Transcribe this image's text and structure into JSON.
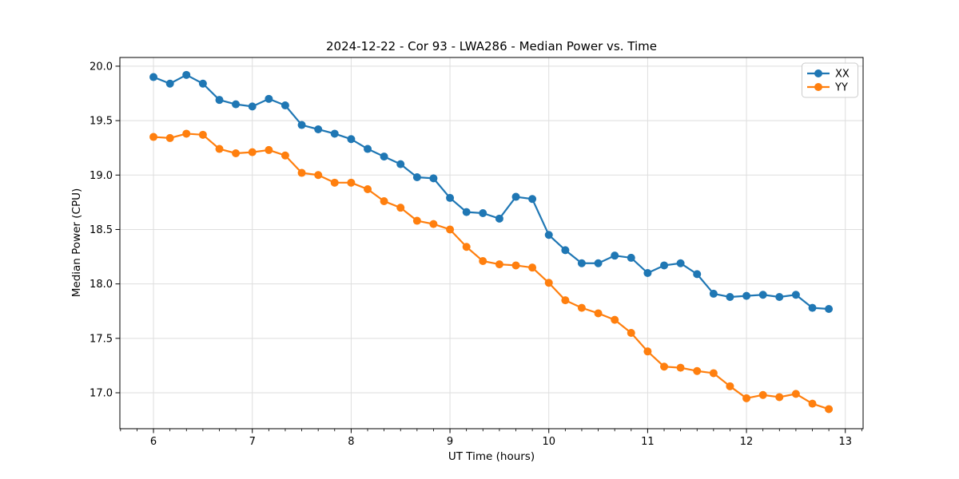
{
  "window": {
    "background_color": "#ffffff"
  },
  "chart_data": {
    "type": "line",
    "title": "2024-12-22 - Cor 93 - LWA286 - Median Power vs. Time",
    "xlabel": "UT Time (hours)",
    "ylabel": "Median Power (CPU)",
    "xlim": [
      5.66,
      13.18
    ],
    "ylim": [
      16.67,
      20.08
    ],
    "grid": true,
    "legend_position": "upper right",
    "x_major_ticks": [
      6,
      7,
      8,
      9,
      10,
      11,
      12,
      13
    ],
    "x_tick_labels": [
      "6",
      "7",
      "8",
      "9",
      "10",
      "11",
      "12",
      "13"
    ],
    "x_minor_step": 0.166667,
    "y_major_ticks": [
      17.0,
      17.5,
      18.0,
      18.5,
      19.0,
      19.5,
      20.0
    ],
    "y_tick_labels": [
      "17.0",
      "17.5",
      "18.0",
      "18.5",
      "19.0",
      "19.5",
      "20.0"
    ],
    "x": [
      6.0,
      6.167,
      6.333,
      6.5,
      6.667,
      6.833,
      7.0,
      7.167,
      7.333,
      7.5,
      7.667,
      7.833,
      8.0,
      8.167,
      8.333,
      8.5,
      8.667,
      8.833,
      9.0,
      9.167,
      9.333,
      9.5,
      9.667,
      9.833,
      10.0,
      10.167,
      10.333,
      10.5,
      10.667,
      10.833,
      11.0,
      11.167,
      11.333,
      11.5,
      11.667,
      11.833,
      12.0,
      12.167,
      12.333,
      12.5,
      12.667,
      12.833
    ],
    "series": [
      {
        "name": "XX",
        "color": "#1f77b4",
        "values": [
          19.9,
          19.84,
          19.92,
          19.84,
          19.69,
          19.65,
          19.63,
          19.7,
          19.64,
          19.46,
          19.42,
          19.38,
          19.33,
          19.24,
          19.17,
          19.1,
          18.98,
          18.97,
          18.79,
          18.66,
          18.65,
          18.6,
          18.8,
          18.78,
          18.45,
          18.31,
          18.19,
          18.19,
          18.26,
          18.24,
          18.1,
          18.17,
          18.19,
          18.09,
          17.91,
          17.88,
          17.89,
          17.9,
          17.88,
          17.9,
          17.78,
          17.77
        ]
      },
      {
        "name": "YY",
        "color": "#ff7f0e",
        "values": [
          19.35,
          19.34,
          19.38,
          19.37,
          19.24,
          19.2,
          19.21,
          19.23,
          19.18,
          19.02,
          19.0,
          18.93,
          18.93,
          18.87,
          18.76,
          18.7,
          18.58,
          18.55,
          18.5,
          18.34,
          18.21,
          18.18,
          18.17,
          18.15,
          18.01,
          17.85,
          17.78,
          17.73,
          17.67,
          17.55,
          17.38,
          17.24,
          17.23,
          17.2,
          17.18,
          17.06,
          16.95,
          16.98,
          16.96,
          16.99,
          16.9,
          16.85
        ]
      }
    ],
    "style": {
      "grid_color": "#dedede",
      "spine_color": "#000000",
      "legend_edge_color": "#cccccc",
      "legend_face_color": "#ffffff",
      "marker_radius": 5,
      "line_width": 2.2
    }
  }
}
